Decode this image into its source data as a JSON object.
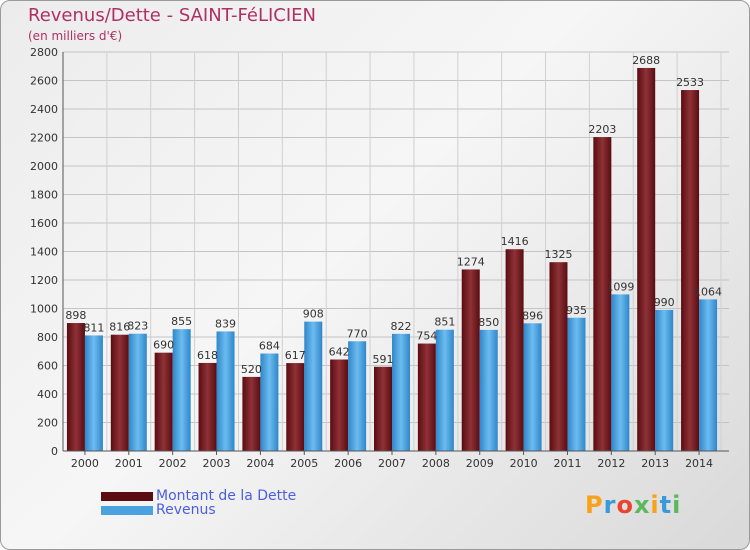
{
  "header": {
    "title": "Revenus/Dette - SAINT-FéLICIEN",
    "subtitle": "(en milliers d'€)"
  },
  "chart_data": {
    "type": "bar",
    "title": "Revenus/Dette - SAINT-FéLICIEN",
    "ylabel": "(en milliers d'€)",
    "xlabel": "",
    "ylim": [
      0,
      2800
    ],
    "yticks": [
      0,
      200,
      400,
      600,
      800,
      1000,
      1200,
      1400,
      1600,
      1800,
      2000,
      2200,
      2400,
      2600,
      2800
    ],
    "grid": true,
    "legend_position": "bottom-left",
    "categories": [
      "2000",
      "2001",
      "2002",
      "2003",
      "2004",
      "2005",
      "2006",
      "2007",
      "2008",
      "2009",
      "2010",
      "2011",
      "2012",
      "2013",
      "2014"
    ],
    "series": [
      {
        "name": "Montant de la Dette",
        "color": "#7a1f24",
        "values": [
          898,
          816,
          690,
          618,
          520,
          617,
          642,
          591,
          754,
          1274,
          1416,
          1325,
          2203,
          2688,
          2533
        ]
      },
      {
        "name": "Revenus",
        "color": "#4aa3df",
        "values": [
          811,
          823,
          855,
          839,
          684,
          908,
          770,
          822,
          851,
          850,
          896,
          935,
          1099,
          990,
          1064
        ]
      }
    ]
  },
  "legend": {
    "items": [
      {
        "label": "Montant de la Dette",
        "color": "#7a1f24"
      },
      {
        "label": "Revenus",
        "color": "#4aa3df"
      }
    ]
  },
  "logo": {
    "letters": [
      "P",
      "r",
      "o",
      "x",
      "i",
      "t",
      "i"
    ],
    "colors": [
      "#f7a21b",
      "#3a9ad9",
      "#e8442e",
      "#5cb85c",
      "#f7a21b",
      "#3a9ad9",
      "#5cb85c"
    ]
  }
}
